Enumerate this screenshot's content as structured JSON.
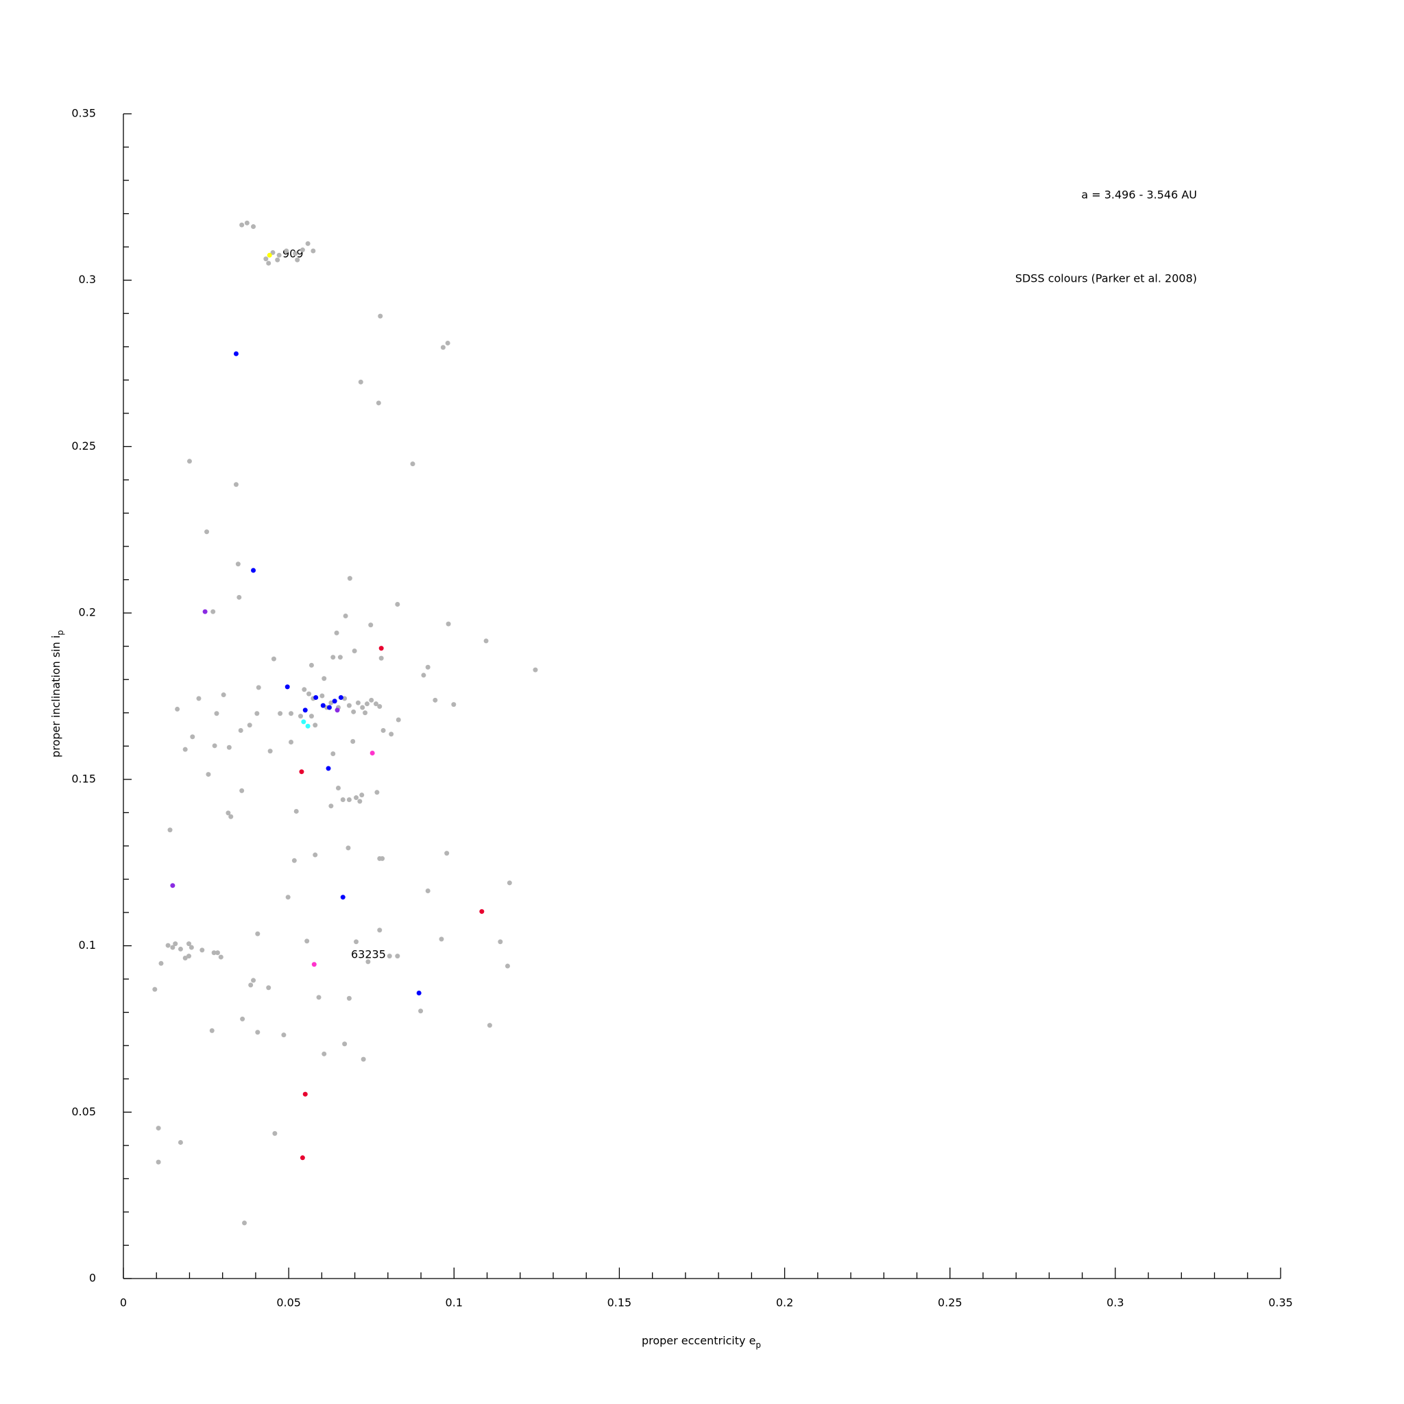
{
  "chart_data": {
    "type": "scatter",
    "xlabel": "proper eccentricity e",
    "xlabel_sub": "p",
    "ylabel": "proper inclination sin i",
    "ylabel_sub": "p",
    "annotations": [
      "a = 3.496 - 3.546 AU",
      "SDSS colours (Parker et al. 2008)",
      "909",
      "63235"
    ],
    "xlim": [
      0,
      0.35
    ],
    "ylim": [
      0,
      0.35
    ],
    "xticks": [
      0,
      0.05,
      0.1,
      0.15,
      0.2,
      0.25,
      0.3,
      0.35
    ],
    "yticks": [
      0,
      0.05,
      0.1,
      0.15,
      0.2,
      0.25,
      0.3,
      0.35
    ],
    "xminorticks": [
      0.01,
      0.02,
      0.03,
      0.04,
      0.06,
      0.07,
      0.08,
      0.09,
      0.11,
      0.12,
      0.13,
      0.14,
      0.16,
      0.17,
      0.18,
      0.19,
      0.21,
      0.22,
      0.23,
      0.24,
      0.26,
      0.27,
      0.28,
      0.29,
      0.31,
      0.32,
      0.33,
      0.34
    ],
    "yminorticks": [
      0.01,
      0.02,
      0.03,
      0.04,
      0.06,
      0.07,
      0.08,
      0.09,
      0.11,
      0.12,
      0.13,
      0.14,
      0.16,
      0.17,
      0.18,
      0.19,
      0.21,
      0.22,
      0.23,
      0.24,
      0.26,
      0.27,
      0.28,
      0.29,
      0.31,
      0.32,
      0.33,
      0.34
    ],
    "series": [
      {
        "color": "#b4b4b4",
        "x": [
          0.0358,
          0.0374,
          0.0393,
          0.0452,
          0.0471,
          0.0493,
          0.052,
          0.0542,
          0.0558,
          0.0574,
          0.0439,
          0.0466,
          0.0526,
          0.0431,
          0.0777,
          0.0981,
          0.0967,
          0.0718,
          0.0772,
          0.02,
          0.0875,
          0.0341,
          0.0252,
          0.0347,
          0.035,
          0.0271,
          0.0685,
          0.0829,
          0.0672,
          0.0748,
          0.0983,
          0.1097,
          0.1246,
          0.0645,
          0.078,
          0.0455,
          0.0569,
          0.0921,
          0.0908,
          0.0634,
          0.0656,
          0.0699,
          0.0409,
          0.0303,
          0.0228,
          0.0163,
          0.0943,
          0.0999,
          0.0547,
          0.0561,
          0.0574,
          0.0601,
          0.0615,
          0.0628,
          0.065,
          0.0669,
          0.0683,
          0.0696,
          0.071,
          0.0723,
          0.0737,
          0.075,
          0.0764,
          0.0775,
          0.0731,
          0.0569,
          0.058,
          0.0536,
          0.0507,
          0.0474,
          0.0607,
          0.0404,
          0.0382,
          0.0282,
          0.0355,
          0.0209,
          0.0276,
          0.032,
          0.0187,
          0.0507,
          0.0444,
          0.0694,
          0.0634,
          0.0786,
          0.081,
          0.0832,
          0.0257,
          0.0358,
          0.065,
          0.0664,
          0.0683,
          0.0704,
          0.0715,
          0.0721,
          0.0767,
          0.0628,
          0.0317,
          0.0325,
          0.0523,
          0.0141,
          0.068,
          0.058,
          0.0517,
          0.0775,
          0.0783,
          0.0978,
          0.1168,
          0.0921,
          0.0498,
          0.0406,
          0.0555,
          0.0704,
          0.0775,
          0.0962,
          0.114,
          0.1162,
          0.0805,
          0.0829,
          0.074,
          0.0135,
          0.0149,
          0.0157,
          0.0173,
          0.0198,
          0.0206,
          0.0187,
          0.0198,
          0.0238,
          0.0274,
          0.0285,
          0.0295,
          0.0114,
          0.0095,
          0.0385,
          0.0393,
          0.0439,
          0.0591,
          0.0683,
          0.0899,
          0.0268,
          0.0406,
          0.0485,
          0.036,
          0.1108,
          0.0669,
          0.0607,
          0.0726,
          0.0106,
          0.0458,
          0.0173,
          0.0106,
          0.0366
        ],
        "values": [
          0.3166,
          0.3172,
          0.3161,
          0.3083,
          0.3075,
          0.3088,
          0.308,
          0.3091,
          0.311,
          0.3088,
          0.3051,
          0.3061,
          0.3061,
          0.3064,
          0.2892,
          0.2811,
          0.2798,
          0.2694,
          0.2631,
          0.2456,
          0.2448,
          0.2386,
          0.2244,
          0.2147,
          0.2047,
          0.2004,
          0.2104,
          0.2026,
          0.1991,
          0.1964,
          0.1967,
          0.1916,
          0.1829,
          0.194,
          0.1864,
          0.1862,
          0.1843,
          0.1837,
          0.1813,
          0.1867,
          0.1867,
          0.1886,
          0.1776,
          0.1754,
          0.1743,
          0.1711,
          0.1738,
          0.1725,
          0.177,
          0.1757,
          0.1743,
          0.1751,
          0.1716,
          0.173,
          0.1716,
          0.1743,
          0.1722,
          0.1703,
          0.173,
          0.1716,
          0.1727,
          0.1738,
          0.1727,
          0.1719,
          0.17,
          0.169,
          0.1663,
          0.169,
          0.1698,
          0.1698,
          0.1803,
          0.1698,
          0.1663,
          0.1698,
          0.1647,
          0.1628,
          0.1601,
          0.1596,
          0.159,
          0.1612,
          0.1585,
          0.1614,
          0.1577,
          0.1647,
          0.1636,
          0.1679,
          0.1515,
          0.1466,
          0.1474,
          0.1439,
          0.1439,
          0.1445,
          0.1434,
          0.1453,
          0.1461,
          0.142,
          0.1399,
          0.1388,
          0.1404,
          0.1348,
          0.1294,
          0.1273,
          0.1256,
          0.1262,
          0.1262,
          0.1278,
          0.1189,
          0.1165,
          0.1146,
          0.1036,
          0.1014,
          0.1012,
          0.1047,
          0.102,
          0.1012,
          0.0939,
          0.0969,
          0.0969,
          0.0952,
          0.1001,
          0.0995,
          0.1006,
          0.099,
          0.1006,
          0.0995,
          0.0963,
          0.0969,
          0.0987,
          0.0979,
          0.0979,
          0.0966,
          0.0947,
          0.0869,
          0.0882,
          0.0896,
          0.0874,
          0.0845,
          0.0842,
          0.0804,
          0.0745,
          0.074,
          0.0732,
          0.078,
          0.0761,
          0.0705,
          0.0675,
          0.0659,
          0.0452,
          0.0436,
          0.0409,
          0.035,
          0.0167
        ]
      },
      {
        "color": "#0000ff",
        "x": [
          0.0341,
          0.0393,
          0.0496,
          0.055,
          0.0582,
          0.0604,
          0.0623,
          0.0639,
          0.0658,
          0.062,
          0.0664,
          0.0894
        ],
        "values": [
          0.2779,
          0.2128,
          0.1778,
          0.1708,
          0.1746,
          0.1722,
          0.1716,
          0.1735,
          0.1746,
          0.1533,
          0.1146,
          0.0858
        ]
      },
      {
        "color": "#8a2be2",
        "x": [
          0.0247,
          0.0149,
          0.0647
        ],
        "values": [
          0.2004,
          0.1181,
          0.1708
        ]
      },
      {
        "color": "#e8002f",
        "x": [
          0.078,
          0.0539,
          0.1084,
          0.055,
          0.0542
        ],
        "values": [
          0.1894,
          0.1523,
          0.1103,
          0.0554,
          0.0363
        ]
      },
      {
        "color": "#ff33cc",
        "x": [
          0.0753,
          0.0577
        ],
        "values": [
          0.1579,
          0.0944
        ]
      },
      {
        "color": "#33ffff",
        "x": [
          0.0545,
          0.0558
        ],
        "values": [
          0.1673,
          0.166
        ]
      },
      {
        "color": "#ffff00",
        "x": [
          0.0442
        ],
        "values": [
          0.3075
        ]
      }
    ]
  }
}
